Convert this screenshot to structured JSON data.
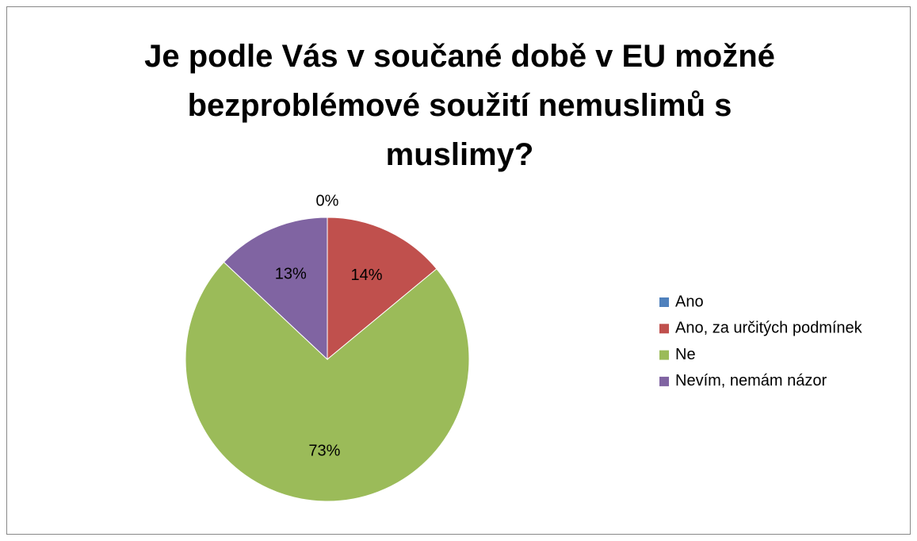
{
  "chart_data": {
    "type": "pie",
    "title": "Je podle Vás v součané době v EU možné bezproblémové soužití nemuslimů s muslimy?",
    "categories": [
      "Ano",
      "Ano, za určitých podmínek",
      "Ne",
      "Nevím, nemám názor"
    ],
    "values": [
      0,
      14,
      73,
      13
    ],
    "value_labels": [
      "0%",
      "14%",
      "73%",
      "13%"
    ],
    "colors": [
      "#4f81bd",
      "#c0504d",
      "#9bbb59",
      "#8064a2"
    ],
    "legend": "right"
  }
}
